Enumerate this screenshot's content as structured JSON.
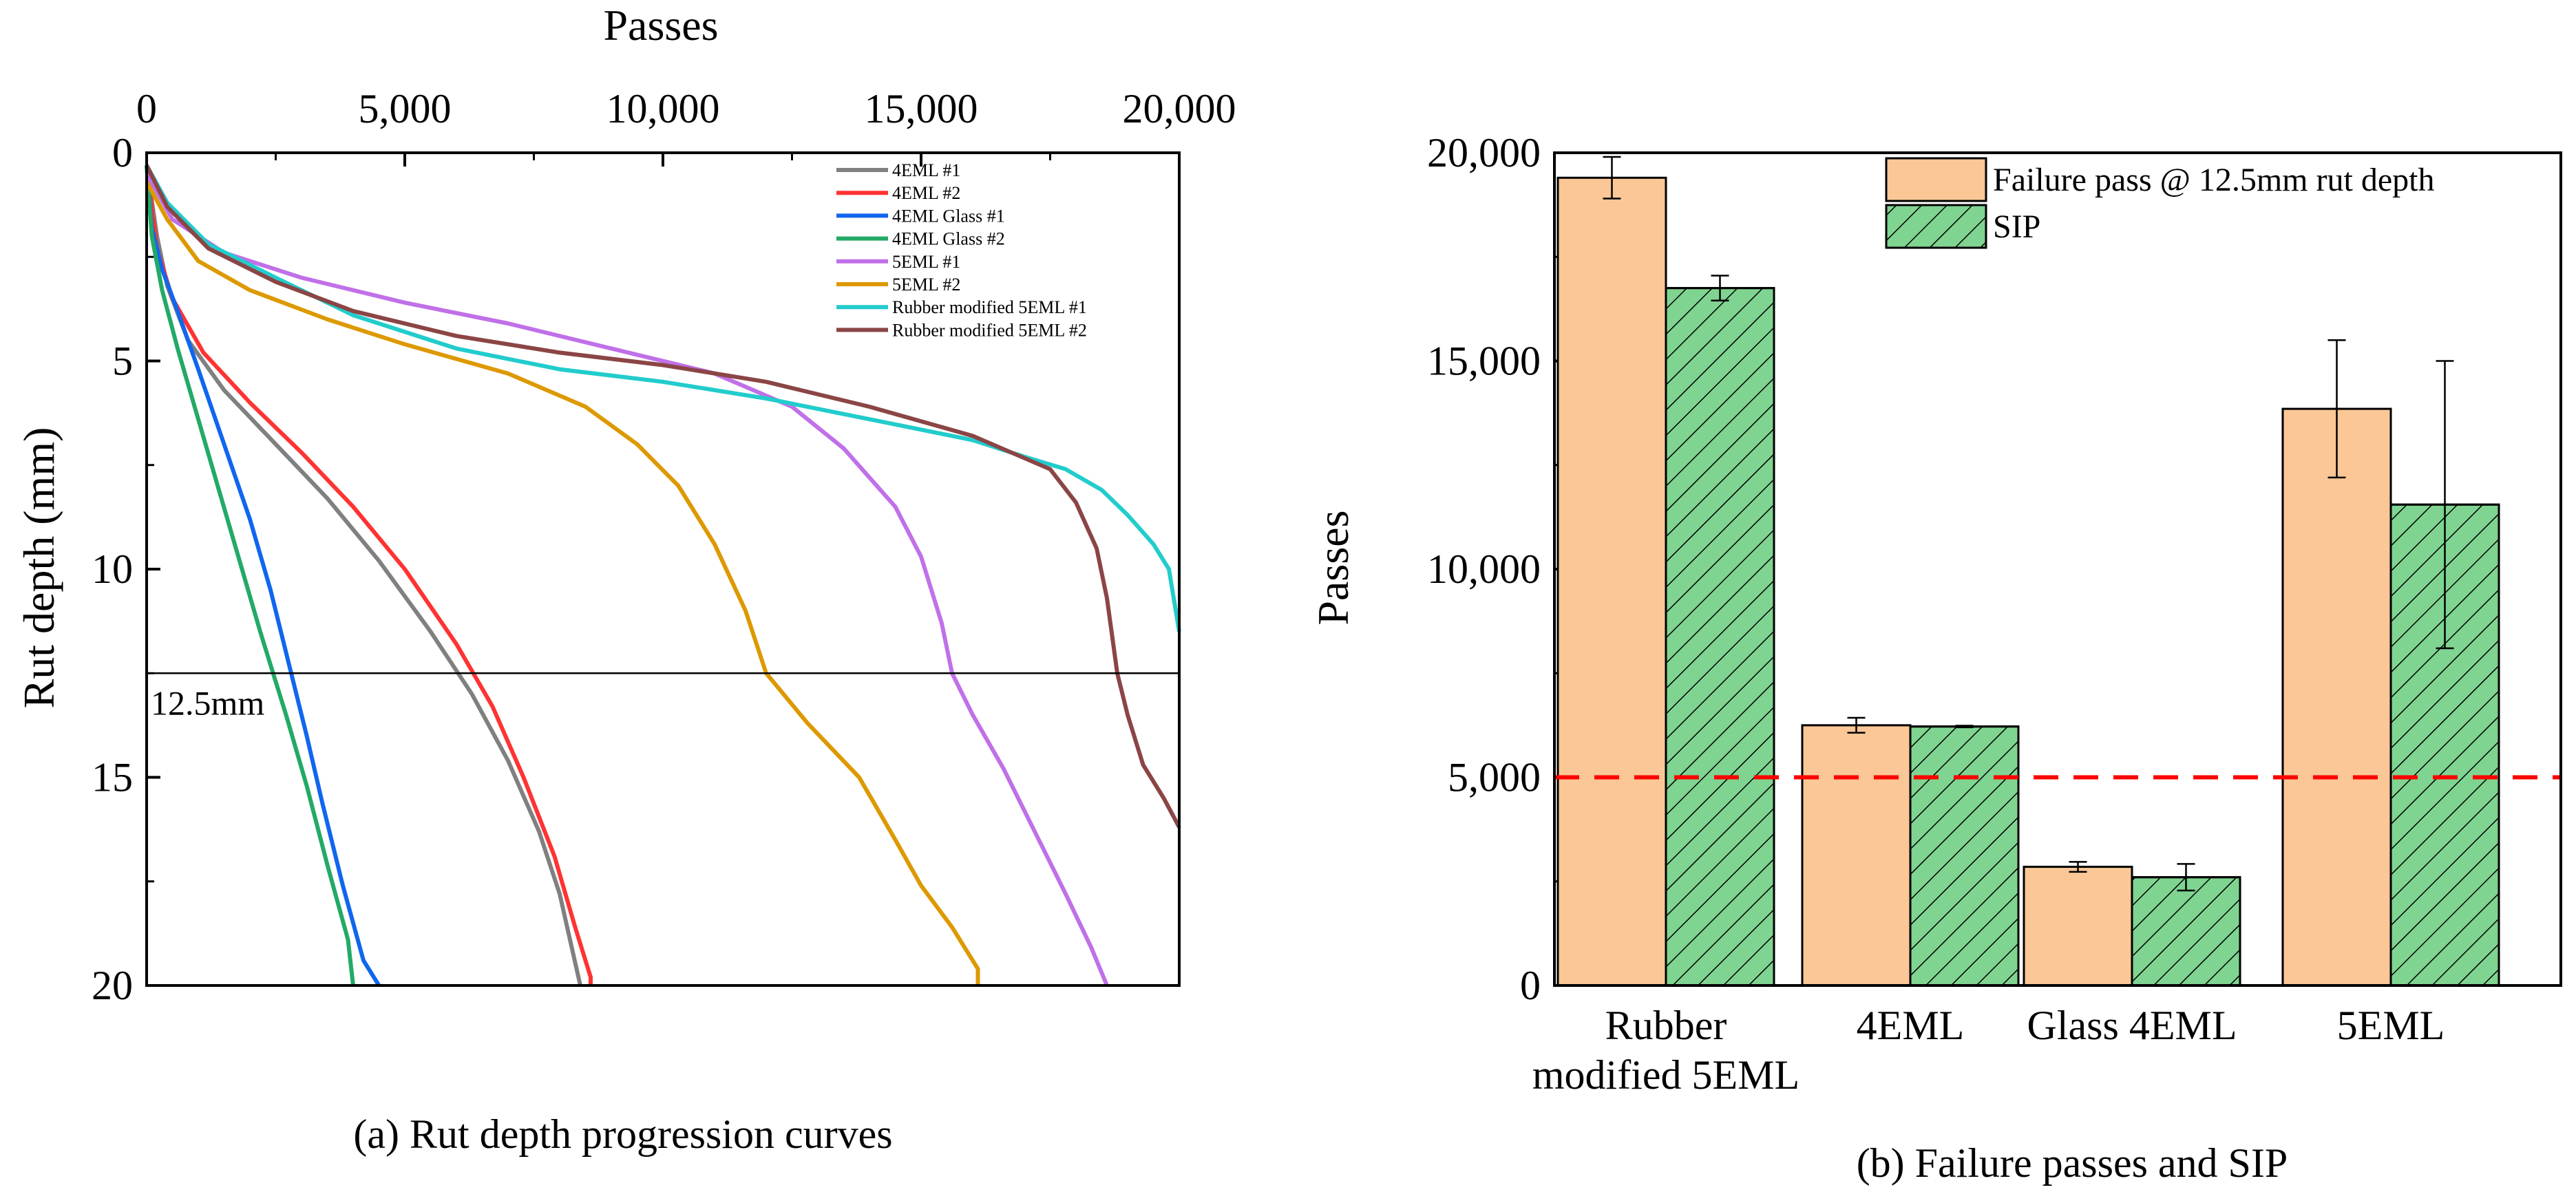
{
  "chart_data": [
    {
      "type": "line",
      "caption": "(a) Rut depth progression curves",
      "xlabel": "Passes",
      "ylabel": "Rut depth (mm)",
      "xlim": [
        0,
        20000
      ],
      "ylim": [
        0,
        20
      ],
      "y_inverted": true,
      "x_axis_position": "top",
      "xticks": [
        "0",
        "5,000",
        "10,000",
        "15,000",
        "20,000"
      ],
      "yticks": [
        "0",
        "5",
        "10",
        "15",
        "20"
      ],
      "legend_placement": "top-right",
      "threshold": {
        "value": 12.5,
        "label": "12.5mm"
      },
      "series": [
        {
          "name": "4EML #1",
          "color": "#808080",
          "points": [
            [
              0,
              0.3
            ],
            [
              200,
              2
            ],
            [
              400,
              3.2
            ],
            [
              800,
              4.5
            ],
            [
              1500,
              5.7
            ],
            [
              2500,
              7
            ],
            [
              3500,
              8.3
            ],
            [
              4500,
              9.8
            ],
            [
              5500,
              11.5
            ],
            [
              6300,
              13
            ],
            [
              7000,
              14.6
            ],
            [
              7600,
              16.3
            ],
            [
              8000,
              17.8
            ],
            [
              8200,
              18.9
            ],
            [
              8400,
              20
            ]
          ]
        },
        {
          "name": "4EML #2",
          "color": "#ff3333",
          "points": [
            [
              0,
              0.3
            ],
            [
              200,
              2.3
            ],
            [
              500,
              3.5
            ],
            [
              1100,
              4.8
            ],
            [
              2000,
              6
            ],
            [
              3000,
              7.2
            ],
            [
              4000,
              8.5
            ],
            [
              5000,
              10
            ],
            [
              6000,
              11.8
            ],
            [
              6700,
              13.3
            ],
            [
              7300,
              15
            ],
            [
              7900,
              16.9
            ],
            [
              8300,
              18.6
            ],
            [
              8600,
              19.8
            ],
            [
              8600,
              20
            ]
          ]
        },
        {
          "name": "4EML Glass #1",
          "color": "#1166ee",
          "points": [
            [
              0,
              0.3
            ],
            [
              100,
              1.8
            ],
            [
              300,
              2.8
            ],
            [
              600,
              3.8
            ],
            [
              1000,
              5.2
            ],
            [
              1500,
              7
            ],
            [
              2000,
              8.8
            ],
            [
              2400,
              10.5
            ],
            [
              2800,
              12.5
            ],
            [
              3100,
              14
            ],
            [
              3400,
              15.6
            ],
            [
              3800,
              17.6
            ],
            [
              4200,
              19.4
            ],
            [
              4500,
              20
            ]
          ]
        },
        {
          "name": "4EML Glass #2",
          "color": "#22aa66",
          "points": [
            [
              0,
              0.3
            ],
            [
              100,
              2
            ],
            [
              300,
              3.3
            ],
            [
              600,
              4.7
            ],
            [
              1000,
              6.4
            ],
            [
              1400,
              8.1
            ],
            [
              1800,
              9.8
            ],
            [
              2200,
              11.5
            ],
            [
              2700,
              13.5
            ],
            [
              3100,
              15.2
            ],
            [
              3500,
              17.1
            ],
            [
              3900,
              18.9
            ],
            [
              4000,
              20
            ]
          ]
        },
        {
          "name": "5EML #1",
          "color": "#c070e8",
          "points": [
            [
              0,
              0.5
            ],
            [
              500,
              1.6
            ],
            [
              1500,
              2.4
            ],
            [
              3000,
              3
            ],
            [
              5000,
              3.6
            ],
            [
              7000,
              4.1
            ],
            [
              9000,
              4.7
            ],
            [
              11000,
              5.3
            ],
            [
              12500,
              6.1
            ],
            [
              13500,
              7.1
            ],
            [
              14500,
              8.5
            ],
            [
              15000,
              9.7
            ],
            [
              15400,
              11.3
            ],
            [
              15600,
              12.5
            ],
            [
              16000,
              13.5
            ],
            [
              16600,
              14.8
            ],
            [
              17200,
              16.3
            ],
            [
              17800,
              17.8
            ],
            [
              18300,
              19.1
            ],
            [
              18600,
              20
            ]
          ]
        },
        {
          "name": "5EML #2",
          "color": "#dd9900",
          "points": [
            [
              0,
              0.7
            ],
            [
              400,
              1.6
            ],
            [
              1000,
              2.6
            ],
            [
              2000,
              3.3
            ],
            [
              3500,
              4
            ],
            [
              5000,
              4.6
            ],
            [
              7000,
              5.3
            ],
            [
              8500,
              6.1
            ],
            [
              9500,
              7
            ],
            [
              10300,
              8
            ],
            [
              11000,
              9.4
            ],
            [
              11600,
              11
            ],
            [
              12000,
              12.5
            ],
            [
              12800,
              13.7
            ],
            [
              13800,
              15
            ],
            [
              14500,
              16.5
            ],
            [
              15000,
              17.6
            ],
            [
              15600,
              18.6
            ],
            [
              16100,
              19.6
            ],
            [
              16100,
              20
            ]
          ]
        },
        {
          "name": "Rubber modified 5EML #1",
          "color": "#22cccc",
          "points": [
            [
              0,
              0.3
            ],
            [
              400,
              1.2
            ],
            [
              1200,
              2.2
            ],
            [
              2500,
              3
            ],
            [
              4000,
              3.9
            ],
            [
              6000,
              4.7
            ],
            [
              8000,
              5.2
            ],
            [
              10000,
              5.5
            ],
            [
              12000,
              5.9
            ],
            [
              14000,
              6.4
            ],
            [
              16000,
              6.9
            ],
            [
              17000,
              7.3
            ],
            [
              17800,
              7.6
            ],
            [
              18500,
              8.1
            ],
            [
              19000,
              8.7
            ],
            [
              19500,
              9.4
            ],
            [
              19800,
              10
            ],
            [
              20000,
              11.5
            ]
          ]
        },
        {
          "name": "Rubber modified 5EML #2",
          "color": "#8b4545",
          "points": [
            [
              0,
              0.3
            ],
            [
              400,
              1.3
            ],
            [
              1200,
              2.3
            ],
            [
              2500,
              3.1
            ],
            [
              4000,
              3.8
            ],
            [
              6000,
              4.4
            ],
            [
              8000,
              4.8
            ],
            [
              10000,
              5.1
            ],
            [
              12000,
              5.5
            ],
            [
              14000,
              6.1
            ],
            [
              16000,
              6.8
            ],
            [
              17500,
              7.6
            ],
            [
              18000,
              8.4
            ],
            [
              18400,
              9.5
            ],
            [
              18600,
              10.7
            ],
            [
              18800,
              12.5
            ],
            [
              19000,
              13.5
            ],
            [
              19300,
              14.7
            ],
            [
              19700,
              15.5
            ],
            [
              20000,
              16.2
            ]
          ]
        }
      ]
    },
    {
      "type": "bar",
      "caption": "(b) Failure passes and SIP",
      "ylabel": "Passes",
      "ylim": [
        0,
        20000
      ],
      "yticks": [
        "0",
        "5,000",
        "10,000",
        "15,000",
        "20,000"
      ],
      "categories": [
        [
          "Rubber",
          "modified 5EML"
        ],
        [
          "4EML"
        ],
        [
          "Glass 4EML"
        ],
        [
          "5EML"
        ]
      ],
      "legend_placement": "top-right",
      "reference_line": 5000,
      "series": [
        {
          "name": "Failure pass @ 12.5mm rut depth",
          "color": "#fbc796",
          "hatch": false,
          "values": [
            19400,
            6250,
            2850,
            13850
          ],
          "errors": [
            500,
            180,
            120,
            1650
          ]
        },
        {
          "name": "SIP",
          "color": "#7fd491",
          "hatch": true,
          "values": [
            16750,
            6220,
            2600,
            11550
          ],
          "errors": [
            300,
            20,
            320,
            3450
          ]
        }
      ]
    }
  ]
}
